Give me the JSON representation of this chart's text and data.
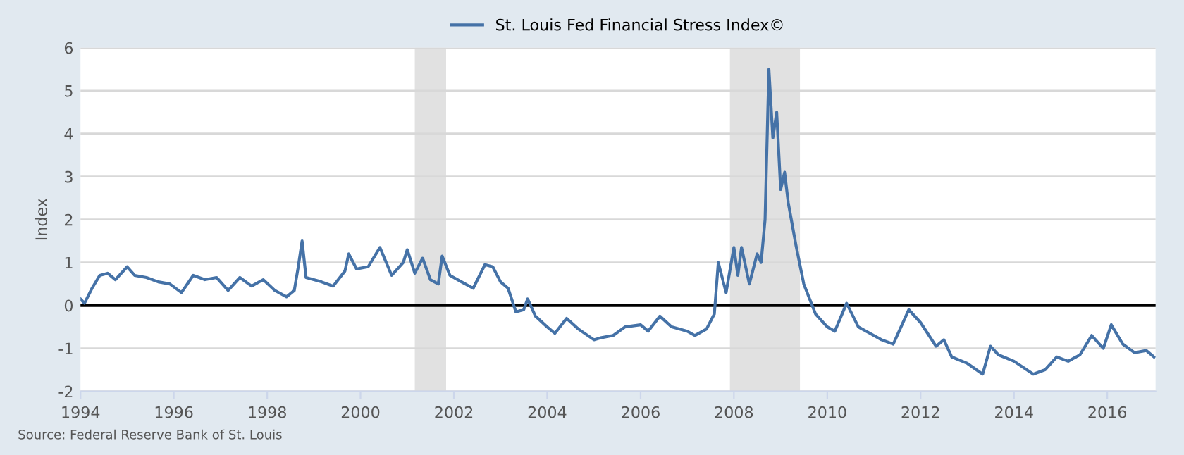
{
  "chart_data": {
    "type": "line",
    "ylabel": "Index",
    "annotations": [
      "Source: Federal Reserve Bank of St. Louis"
    ],
    "x": [
      "1994-01",
      "1994-02",
      "1994-04",
      "1994-06",
      "1994-08",
      "1994-10",
      "1995-01",
      "1995-03",
      "1995-06",
      "1995-09",
      "1995-12",
      "1996-03",
      "1996-06",
      "1996-09",
      "1996-12",
      "1997-03",
      "1997-06",
      "1997-09",
      "1997-12",
      "1998-03",
      "1998-06",
      "1998-08",
      "1998-09",
      "1998-10",
      "1998-11",
      "1999-03",
      "1999-06",
      "1999-09",
      "1999-10",
      "1999-12",
      "2000-03",
      "2000-06",
      "2000-09",
      "2000-12",
      "2001-01",
      "2001-03",
      "2001-05",
      "2001-07",
      "2001-09",
      "2001-10",
      "2001-12",
      "2002-03",
      "2002-06",
      "2002-09",
      "2002-11",
      "2003-01",
      "2003-03",
      "2003-05",
      "2003-07",
      "2003-08",
      "2003-10",
      "2004-01",
      "2004-03",
      "2004-06",
      "2004-09",
      "2005-01",
      "2005-03",
      "2005-06",
      "2005-09",
      "2006-01",
      "2006-03",
      "2006-06",
      "2006-09",
      "2007-01",
      "2007-03",
      "2007-06",
      "2007-08",
      "2007-09",
      "2007-11",
      "2008-01",
      "2008-02",
      "2008-03",
      "2008-05",
      "2008-07",
      "2008-08",
      "2008-09",
      "2008-10",
      "2008-11",
      "2008-12",
      "2009-01",
      "2009-02",
      "2009-03",
      "2009-05",
      "2009-07",
      "2009-10",
      "2010-01",
      "2010-03",
      "2010-06",
      "2010-09",
      "2010-12",
      "2011-03",
      "2011-06",
      "2011-08",
      "2011-10",
      "2012-01",
      "2012-05",
      "2012-07",
      "2012-09",
      "2013-01",
      "2013-05",
      "2013-07",
      "2013-09",
      "2014-01",
      "2014-06",
      "2014-09",
      "2014-12",
      "2015-03",
      "2015-06",
      "2015-09",
      "2015-12",
      "2016-02",
      "2016-05",
      "2016-08",
      "2016-11",
      "2017-01"
    ],
    "series": [
      {
        "name": "St. Louis Fed Financial Stress Index©",
        "color": "#4572a7",
        "values": [
          0.15,
          0.05,
          0.4,
          0.7,
          0.75,
          0.6,
          0.9,
          0.7,
          0.65,
          0.55,
          0.5,
          0.3,
          0.7,
          0.6,
          0.65,
          0.35,
          0.65,
          0.45,
          0.6,
          0.35,
          0.2,
          0.35,
          0.9,
          1.5,
          0.65,
          0.55,
          0.45,
          0.8,
          1.2,
          0.85,
          0.9,
          1.35,
          0.7,
          1.0,
          1.3,
          0.75,
          1.1,
          0.6,
          0.5,
          1.15,
          0.7,
          0.55,
          0.4,
          0.95,
          0.9,
          0.55,
          0.4,
          -0.15,
          -0.1,
          0.15,
          -0.25,
          -0.5,
          -0.65,
          -0.3,
          -0.55,
          -0.8,
          -0.75,
          -0.7,
          -0.5,
          -0.45,
          -0.6,
          -0.25,
          -0.5,
          -0.6,
          -0.7,
          -0.55,
          -0.2,
          1.0,
          0.3,
          1.35,
          0.7,
          1.35,
          0.5,
          1.2,
          1.0,
          2.0,
          5.5,
          3.9,
          4.5,
          2.7,
          3.1,
          2.4,
          1.4,
          0.5,
          -0.2,
          -0.5,
          -0.6,
          0.05,
          -0.5,
          -0.65,
          -0.8,
          -0.9,
          -0.5,
          -0.1,
          -0.4,
          -0.95,
          -0.8,
          -1.2,
          -1.35,
          -1.6,
          -0.95,
          -1.15,
          -1.3,
          -1.6,
          -1.5,
          -1.2,
          -1.3,
          -1.15,
          -0.7,
          -1.0,
          -0.45,
          -0.9,
          -1.1,
          -1.05,
          -1.2
        ]
      }
    ],
    "xlim": [
      "1994-01-01",
      "2017-01-13"
    ],
    "xticks": [
      {
        "value": "1994-01-01",
        "label": "1994"
      },
      {
        "value": "1996-01-01",
        "label": "1996"
      },
      {
        "value": "1998-01-01",
        "label": "1998"
      },
      {
        "value": "2000-01-01",
        "label": "2000"
      },
      {
        "value": "2002-01-01",
        "label": "2002"
      },
      {
        "value": "2004-01-01",
        "label": "2004"
      },
      {
        "value": "2006-01-01",
        "label": "2006"
      },
      {
        "value": "2008-01-01",
        "label": "2008"
      },
      {
        "value": "2010-01-01",
        "label": "2010"
      },
      {
        "value": "2012-01-01",
        "label": "2012"
      },
      {
        "value": "2014-01-01",
        "label": "2014"
      },
      {
        "value": "2016-01-01",
        "label": "2016"
      }
    ],
    "ylim": [
      -2,
      6
    ],
    "yticks": [
      -2,
      -1,
      0,
      1,
      2,
      3,
      4,
      5,
      6
    ],
    "ref_lines": [
      {
        "axis": "y",
        "value": 0,
        "color": "#000000"
      }
    ],
    "bands": [
      {
        "axis": "x",
        "from": "2001-03",
        "to": "2001-11",
        "color": "#e1e1e1"
      },
      {
        "axis": "x",
        "from": "2007-12",
        "to": "2009-06",
        "color": "#e1e1e1"
      }
    ],
    "grid": "y",
    "legend": "top"
  }
}
